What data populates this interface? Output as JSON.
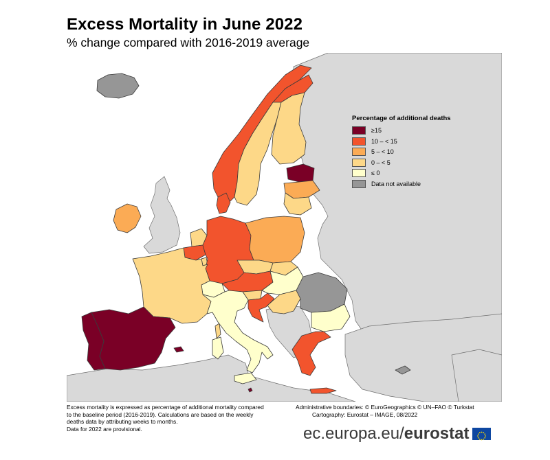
{
  "header": {
    "title": "Excess Mortality in June 2022",
    "subtitle": "% change compared with 2016-2019 average"
  },
  "legend": {
    "title": "Percentage of additional deaths",
    "classes": [
      {
        "label": "≥15",
        "color": "#7a0026"
      },
      {
        "label": "10 – < 15",
        "color": "#f2542d"
      },
      {
        "label": "5 – < 10",
        "color": "#fbab55"
      },
      {
        "label": "0 – < 5",
        "color": "#fdd888"
      },
      {
        "label": "≤ 0",
        "color": "#ffffcc"
      },
      {
        "label": "Data not available",
        "color": "#969696"
      }
    ]
  },
  "map_data": {
    "non_member_color": "#d9d9d9",
    "sea_color": "#ffffff",
    "class_by_country": {
      "Spain": "≥15",
      "Portugal": "≥15",
      "Estonia": "≥15",
      "Malta": "≥15",
      "Germany": "10 – < 15",
      "Norway": "10 – < 15",
      "Denmark": "10 – < 15",
      "Austria": "10 – < 15",
      "Greece": "10 – < 15",
      "Finland (north)": "10 – < 15",
      "Croatia": "10 – < 15",
      "Belgium": "10 – < 15",
      "Cyprus": "10 – < 15",
      "Poland": "5 – < 10",
      "Ireland": "5 – < 10",
      "Latvia": "5 – < 10",
      "France": "0 – < 5",
      "Sweden": "0 – < 5",
      "Finland": "0 – < 5",
      "Czechia": "0 – < 5",
      "Slovakia": "0 – < 5",
      "Lithuania": "0 – < 5",
      "Netherlands": "0 – < 5",
      "Luxembourg": "0 – < 5",
      "Slovenia": "0 – < 5",
      "Serbia-area": "0 – < 5",
      "Italy": "≤ 0",
      "Hungary": "≤ 0",
      "Bulgaria": "≤ 0",
      "Switzerland": "≤ 0",
      "Liechtenstein": "≤ 0",
      "Romania": "Data not available",
      "Iceland": "Data not available"
    }
  },
  "footer": {
    "note_lines": [
      "Excess mortality is expressed as percentage of additional mortality compared",
      "to the baseline period (2016-2019). Calculations are based on the weekly",
      "deaths data by attributing weeks to months.",
      "Data for 2022 are provisional."
    ],
    "credits_line1": "Administrative boundaries: © EuroGeographics © UN–FAO © Turkstat",
    "credits_line2": "Cartography: Eurostat – IMAGE, 08/2022",
    "brand_prefix": "ec.europa.eu/",
    "brand_name": "eurostat",
    "flag_color": "#0e47a1",
    "flag_star_color": "#ffdd00"
  }
}
